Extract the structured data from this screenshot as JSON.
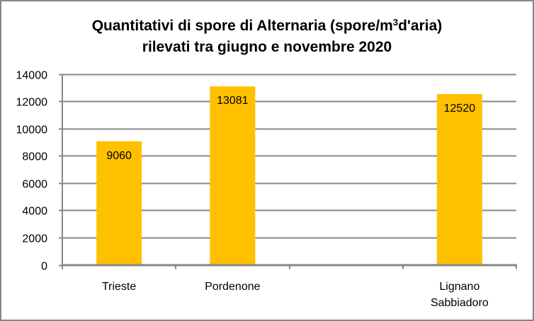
{
  "chart_data": {
    "type": "bar",
    "title_line1_pre": "Quantitativi di spore di Alternaria (spore/m",
    "title_sup": "3",
    "title_line1_post": "d'aria)",
    "title_line2": "rilevati tra giugno e novembre 2020",
    "title": "Quantitativi di spore di Alternaria (spore/m³d'aria) rilevati tra giugno e novembre 2020",
    "categories": [
      "Trieste",
      "Pordenone",
      "",
      "Lignano Sabbiadoro"
    ],
    "category_lines": [
      [
        "Trieste"
      ],
      [
        "Pordenone"
      ],
      [],
      [
        "Lignano",
        "Sabbiadoro"
      ]
    ],
    "values": [
      9060,
      13081,
      null,
      12520
    ],
    "data_labels": [
      "9060",
      "13081",
      "",
      "12520"
    ],
    "xlabel": "",
    "ylabel": "",
    "ylim": [
      0,
      14000
    ],
    "yticks": [
      0,
      2000,
      4000,
      6000,
      8000,
      10000,
      12000,
      14000
    ],
    "ytick_labels": [
      "0",
      "2000",
      "4000",
      "6000",
      "8000",
      "10000",
      "12000",
      "14000"
    ],
    "grid": true,
    "legend": null,
    "bar_color": "#FFC000",
    "grid_color": "#878787"
  }
}
